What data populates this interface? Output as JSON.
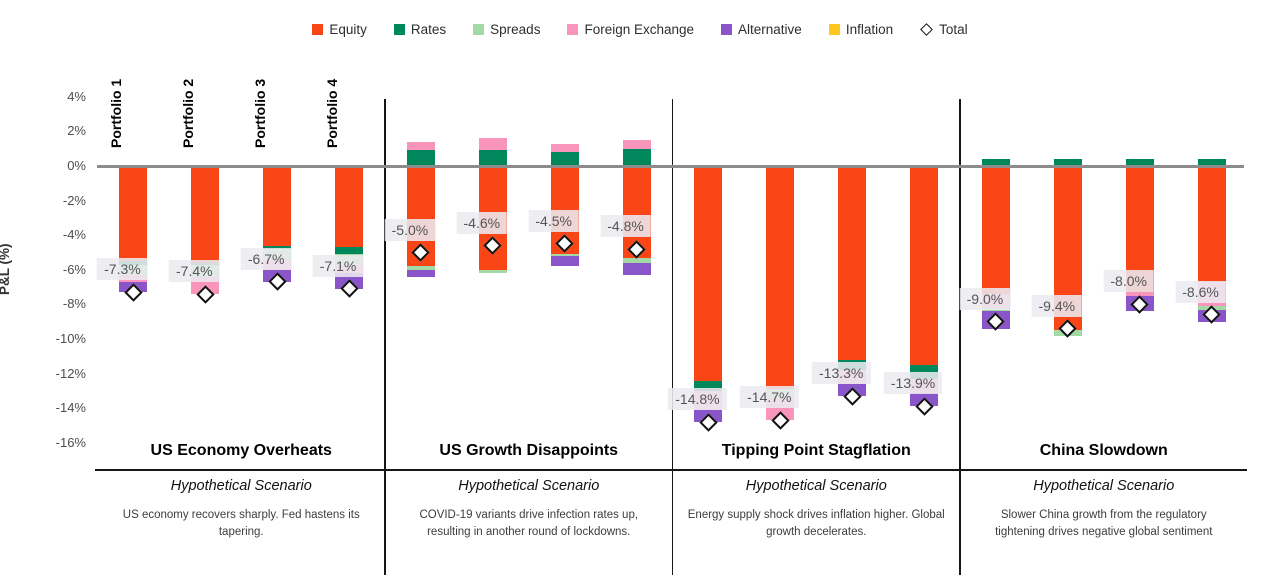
{
  "legend": {
    "items": [
      {
        "id": "equity",
        "label": "Equity"
      },
      {
        "id": "rates",
        "label": "Rates"
      },
      {
        "id": "spreads",
        "label": "Spreads"
      },
      {
        "id": "fx",
        "label": "Foreign Exchange"
      },
      {
        "id": "alternative",
        "label": "Alternative"
      },
      {
        "id": "inflation",
        "label": "Inflation"
      },
      {
        "id": "total",
        "label": "Total"
      }
    ]
  },
  "chart_data": {
    "type": "bar",
    "stacked": true,
    "orientation": "vertical",
    "title": "",
    "ylabel": "P&L (%)",
    "ylim": [
      -16,
      4
    ],
    "grid": false,
    "legend_position": "top",
    "yticks": [
      {
        "label": "4%",
        "value": 4
      },
      {
        "label": "2%",
        "value": 2
      },
      {
        "label": "0%",
        "value": 0
      },
      {
        "label": "-2%",
        "value": -2
      },
      {
        "label": "-4%",
        "value": -4
      },
      {
        "label": "-6%",
        "value": -6
      },
      {
        "label": "-8%",
        "value": -8
      },
      {
        "label": "-10%",
        "value": -10
      },
      {
        "label": "-12%",
        "value": -12
      },
      {
        "label": "-14%",
        "value": -14
      },
      {
        "label": "-16%",
        "value": -16
      }
    ],
    "series": [
      {
        "id": "equity",
        "name": "Equity",
        "color": "#FA4616"
      },
      {
        "id": "rates",
        "name": "Rates",
        "color": "#00875B"
      },
      {
        "id": "spreads",
        "name": "Spreads",
        "color": "#A2D9A5"
      },
      {
        "id": "fx",
        "name": "Foreign Exchange",
        "color": "#F995BB"
      },
      {
        "id": "alternative",
        "name": "Alternative",
        "color": "#8A55C8"
      },
      {
        "id": "inflation",
        "name": "Inflation",
        "color": "#FFC61E"
      }
    ],
    "total_marker": {
      "label": "Total",
      "shape": "diamond",
      "fill": "#FFFFFF",
      "stroke": "#111111"
    },
    "portfolios": [
      "Portfolio 1",
      "Portfolio 2",
      "Portfolio 3",
      "Portfolio 4"
    ],
    "groups": [
      {
        "name": "US Economy Overheats",
        "subtitle": "Hypothetical Scenario",
        "description": "US economy recovers sharply. Fed hastens its tapering.",
        "show_portfolio_labels": true,
        "bars": [
          {
            "portfolio": "Portfolio 1",
            "total": -7.3,
            "total_label": "-7.3%",
            "segments": [
              {
                "series": "equity",
                "value": -5.5
              },
              {
                "series": "rates",
                "value": -0.2
              },
              {
                "series": "spreads",
                "value": -0.6
              },
              {
                "series": "fx",
                "value": -0.4
              },
              {
                "series": "alternative",
                "value": -0.6
              }
            ]
          },
          {
            "portfolio": "Portfolio 2",
            "total": -7.4,
            "total_label": "-7.4%",
            "segments": [
              {
                "series": "equity",
                "value": -5.6
              },
              {
                "series": "rates",
                "value": -0.1
              },
              {
                "series": "spreads",
                "value": -0.7
              },
              {
                "series": "fx",
                "value": -1.0
              }
            ]
          },
          {
            "portfolio": "Portfolio 3",
            "total": -6.7,
            "total_label": "-6.7%",
            "segments": [
              {
                "series": "equity",
                "value": -4.6
              },
              {
                "series": "rates",
                "value": -0.2
              },
              {
                "series": "spreads",
                "value": -0.6
              },
              {
                "series": "fx",
                "value": -0.6
              },
              {
                "series": "alternative",
                "value": -0.7
              }
            ]
          },
          {
            "portfolio": "Portfolio 4",
            "total": -7.1,
            "total_label": "-7.1%",
            "segments": [
              {
                "series": "equity",
                "value": -4.7
              },
              {
                "series": "rates",
                "value": -0.4
              },
              {
                "series": "spreads",
                "value": -0.6
              },
              {
                "series": "fx",
                "value": -0.5
              },
              {
                "series": "alternative",
                "value": -0.9
              }
            ]
          }
        ]
      },
      {
        "name": "US Growth Disappoints",
        "subtitle": "Hypothetical Scenario",
        "description": "COVID-19 variants drive infection rates up, resulting in another round of lockdowns.",
        "show_portfolio_labels": false,
        "bars": [
          {
            "portfolio": "Portfolio 1",
            "total": -5.0,
            "total_label": "-5.0%",
            "segments": [
              {
                "series": "equity",
                "value": -5.8
              },
              {
                "series": "rates",
                "value": 0.9
              },
              {
                "series": "spreads",
                "value": -0.2
              },
              {
                "series": "fx",
                "value": 0.5
              },
              {
                "series": "alternative",
                "value": -0.4
              }
            ]
          },
          {
            "portfolio": "Portfolio 2",
            "total": -4.6,
            "total_label": "-4.6%",
            "segments": [
              {
                "series": "equity",
                "value": -6.0
              },
              {
                "series": "rates",
                "value": 0.9
              },
              {
                "series": "spreads",
                "value": -0.2
              },
              {
                "series": "fx",
                "value": 0.7
              }
            ]
          },
          {
            "portfolio": "Portfolio 3",
            "total": -4.5,
            "total_label": "-4.5%",
            "segments": [
              {
                "series": "equity",
                "value": -5.1
              },
              {
                "series": "rates",
                "value": 0.8
              },
              {
                "series": "spreads",
                "value": -0.1
              },
              {
                "series": "fx",
                "value": 0.5
              },
              {
                "series": "alternative",
                "value": -0.6
              }
            ]
          },
          {
            "portfolio": "Portfolio 4",
            "total": -4.8,
            "total_label": "-4.8%",
            "segments": [
              {
                "series": "equity",
                "value": -5.3
              },
              {
                "series": "rates",
                "value": 1.0
              },
              {
                "series": "spreads",
                "value": -0.3
              },
              {
                "series": "fx",
                "value": 0.5
              },
              {
                "series": "alternative",
                "value": -0.7
              }
            ]
          }
        ]
      },
      {
        "name": "Tipping Point Stagflation",
        "subtitle": "Hypothetical Scenario",
        "description": "Energy supply shock drives inflation higher. Global growth decelerates.",
        "show_portfolio_labels": false,
        "bars": [
          {
            "portfolio": "Portfolio 1",
            "total": -14.8,
            "total_label": "-14.8%",
            "segments": [
              {
                "series": "equity",
                "value": -12.4
              },
              {
                "series": "rates",
                "value": -0.6
              },
              {
                "series": "fx",
                "value": -1.1
              },
              {
                "series": "alternative",
                "value": -0.7
              }
            ]
          },
          {
            "portfolio": "Portfolio 2",
            "total": -14.7,
            "total_label": "-14.7%",
            "segments": [
              {
                "series": "equity",
                "value": -12.9
              },
              {
                "series": "spreads",
                "value": -0.5
              },
              {
                "series": "fx",
                "value": -1.3
              }
            ]
          },
          {
            "portfolio": "Portfolio 3",
            "total": -13.3,
            "total_label": "-13.3%",
            "segments": [
              {
                "series": "equity",
                "value": -11.2
              },
              {
                "series": "rates",
                "value": -0.6
              },
              {
                "series": "fx",
                "value": -0.8
              },
              {
                "series": "alternative",
                "value": -0.7
              }
            ]
          },
          {
            "portfolio": "Portfolio 4",
            "total": -13.9,
            "total_label": "-13.9%",
            "segments": [
              {
                "series": "equity",
                "value": -11.5
              },
              {
                "series": "rates",
                "value": -0.8
              },
              {
                "series": "fx",
                "value": -0.8
              },
              {
                "series": "alternative",
                "value": -0.8
              }
            ]
          }
        ]
      },
      {
        "name": "China Slowdown",
        "subtitle": "Hypothetical Scenario",
        "description": "Slower China growth from the regulatory tightening drives negative global sentiment",
        "show_portfolio_labels": false,
        "bars": [
          {
            "portfolio": "Portfolio 1",
            "total": -9.0,
            "total_label": "-9.0%",
            "segments": [
              {
                "series": "equity",
                "value": -7.4
              },
              {
                "series": "fx",
                "value": -0.8
              },
              {
                "series": "spreads",
                "value": -0.2
              },
              {
                "series": "alternative",
                "value": -1.0
              },
              {
                "series": "rates",
                "value": 0.4
              }
            ]
          },
          {
            "portfolio": "Portfolio 2",
            "total": -9.4,
            "total_label": "-9.4%",
            "segments": [
              {
                "series": "equity",
                "value": -9.5
              },
              {
                "series": "spreads",
                "value": -0.3
              },
              {
                "series": "rates",
                "value": 0.4
              }
            ]
          },
          {
            "portfolio": "Portfolio 3",
            "total": -8.0,
            "total_label": "-8.0%",
            "segments": [
              {
                "series": "equity",
                "value": -7.3
              },
              {
                "series": "fx",
                "value": -0.2
              },
              {
                "series": "alternative",
                "value": -0.9
              },
              {
                "series": "rates",
                "value": 0.4
              }
            ]
          },
          {
            "portfolio": "Portfolio 4",
            "total": -8.6,
            "total_label": "-8.6%",
            "segments": [
              {
                "series": "equity",
                "value": -6.7
              },
              {
                "series": "fx",
                "value": -1.4
              },
              {
                "series": "spreads",
                "value": -0.2
              },
              {
                "series": "alternative",
                "value": -0.7
              },
              {
                "series": "rates",
                "value": 0.4
              }
            ]
          }
        ]
      }
    ]
  }
}
